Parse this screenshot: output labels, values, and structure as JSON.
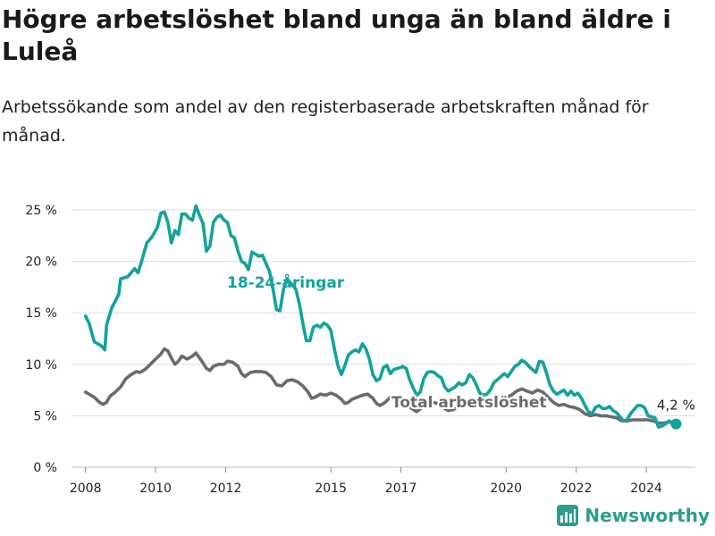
{
  "title": "Högre arbetslöshet bland unga än bland äldre i Luleå",
  "subtitle": "Arbetssökande som andel av den registerbaserade arbetskraften månad för månad.",
  "brand": "Newsworthy",
  "colors": {
    "youth": "#13a39a",
    "total": "#6a6a70",
    "grid": "#dddddd",
    "text": "#222222"
  },
  "chart_data": {
    "type": "line",
    "title": "Högre arbetslöshet bland unga än bland äldre i Luleå",
    "subtitle": "Arbetssökande som andel av den registerbaserade arbetskraften månad för månad.",
    "xlabel": "",
    "ylabel": "",
    "xlim": [
      2007.6,
      2025.4
    ],
    "ylim": [
      0,
      25
    ],
    "yticks": [
      0,
      5,
      10,
      15,
      20,
      25
    ],
    "ytick_labels": [
      "0 %",
      "5 %",
      "10 %",
      "15 %",
      "20 %",
      "25 %"
    ],
    "xticks": [
      2008,
      2010,
      2012,
      2015,
      2017,
      2020,
      2022,
      2024
    ],
    "xtick_labels": [
      "2008",
      "2010",
      "2012",
      "2015",
      "2017",
      "2020",
      "2022",
      "2024"
    ],
    "grid": true,
    "end_label": "4,2 %",
    "series": [
      {
        "name": "18-24-åringar",
        "color": "#13a39a",
        "points": [
          [
            2008.0,
            14.7
          ],
          [
            2008.1,
            14.0
          ],
          [
            2008.25,
            12.2
          ],
          [
            2008.45,
            11.8
          ],
          [
            2008.55,
            11.4
          ],
          [
            2008.6,
            13.8
          ],
          [
            2008.75,
            15.5
          ],
          [
            2008.95,
            16.8
          ],
          [
            2009.0,
            18.3
          ],
          [
            2009.2,
            18.5
          ],
          [
            2009.4,
            19.3
          ],
          [
            2009.5,
            18.9
          ],
          [
            2009.6,
            20.0
          ],
          [
            2009.75,
            21.8
          ],
          [
            2009.9,
            22.4
          ],
          [
            2010.05,
            23.3
          ],
          [
            2010.15,
            24.7
          ],
          [
            2010.25,
            24.8
          ],
          [
            2010.35,
            23.8
          ],
          [
            2010.45,
            21.8
          ],
          [
            2010.55,
            23.0
          ],
          [
            2010.65,
            22.6
          ],
          [
            2010.75,
            24.6
          ],
          [
            2010.85,
            24.6
          ],
          [
            2010.95,
            24.2
          ],
          [
            2011.05,
            24.0
          ],
          [
            2011.15,
            25.4
          ],
          [
            2011.25,
            24.5
          ],
          [
            2011.35,
            23.7
          ],
          [
            2011.45,
            21.0
          ],
          [
            2011.55,
            21.5
          ],
          [
            2011.65,
            23.8
          ],
          [
            2011.75,
            24.3
          ],
          [
            2011.85,
            24.5
          ],
          [
            2011.95,
            24.0
          ],
          [
            2012.05,
            23.8
          ],
          [
            2012.15,
            22.5
          ],
          [
            2012.25,
            22.3
          ],
          [
            2012.35,
            21.0
          ],
          [
            2012.45,
            20.0
          ],
          [
            2012.55,
            19.8
          ],
          [
            2012.65,
            19.2
          ],
          [
            2012.75,
            20.9
          ],
          [
            2012.85,
            20.7
          ],
          [
            2012.95,
            20.5
          ],
          [
            2013.05,
            20.6
          ],
          [
            2013.15,
            19.8
          ],
          [
            2013.25,
            19.0
          ],
          [
            2013.35,
            17.3
          ],
          [
            2013.45,
            15.3
          ],
          [
            2013.55,
            15.2
          ],
          [
            2013.65,
            17.3
          ],
          [
            2013.75,
            18.3
          ],
          [
            2013.85,
            17.9
          ],
          [
            2014.0,
            17.3
          ],
          [
            2014.1,
            15.9
          ],
          [
            2014.2,
            14.0
          ],
          [
            2014.3,
            12.3
          ],
          [
            2014.4,
            12.3
          ],
          [
            2014.5,
            13.6
          ],
          [
            2014.6,
            13.8
          ],
          [
            2014.7,
            13.6
          ],
          [
            2014.8,
            14.0
          ],
          [
            2014.9,
            13.8
          ],
          [
            2015.0,
            13.3
          ],
          [
            2015.1,
            11.5
          ],
          [
            2015.2,
            9.9
          ],
          [
            2015.3,
            9.0
          ],
          [
            2015.4,
            9.9
          ],
          [
            2015.5,
            10.9
          ],
          [
            2015.6,
            11.2
          ],
          [
            2015.7,
            11.4
          ],
          [
            2015.8,
            11.2
          ],
          [
            2015.9,
            12.0
          ],
          [
            2016.0,
            11.5
          ],
          [
            2016.1,
            10.5
          ],
          [
            2016.2,
            9.0
          ],
          [
            2016.3,
            8.4
          ],
          [
            2016.4,
            8.6
          ],
          [
            2016.5,
            9.7
          ],
          [
            2016.6,
            9.9
          ],
          [
            2016.7,
            9.1
          ],
          [
            2016.8,
            9.5
          ],
          [
            2016.9,
            9.6
          ],
          [
            2017.0,
            9.7
          ],
          [
            2017.05,
            9.8
          ],
          [
            2017.15,
            9.6
          ],
          [
            2017.25,
            8.5
          ],
          [
            2017.35,
            7.7
          ],
          [
            2017.45,
            7.0
          ],
          [
            2017.55,
            7.3
          ],
          [
            2017.65,
            8.6
          ],
          [
            2017.75,
            9.2
          ],
          [
            2017.85,
            9.3
          ],
          [
            2017.95,
            9.2
          ],
          [
            2018.05,
            8.9
          ],
          [
            2018.15,
            8.7
          ],
          [
            2018.25,
            7.8
          ],
          [
            2018.35,
            7.4
          ],
          [
            2018.45,
            7.6
          ],
          [
            2018.55,
            7.8
          ],
          [
            2018.65,
            8.2
          ],
          [
            2018.75,
            8.0
          ],
          [
            2018.85,
            8.2
          ],
          [
            2018.95,
            9.0
          ],
          [
            2019.05,
            8.7
          ],
          [
            2019.15,
            8.0
          ],
          [
            2019.25,
            7.2
          ],
          [
            2019.35,
            7.0
          ],
          [
            2019.45,
            7.1
          ],
          [
            2019.55,
            7.5
          ],
          [
            2019.65,
            8.2
          ],
          [
            2019.75,
            8.5
          ],
          [
            2019.85,
            8.8
          ],
          [
            2019.95,
            9.1
          ],
          [
            2020.05,
            8.8
          ],
          [
            2020.15,
            9.3
          ],
          [
            2020.25,
            9.8
          ],
          [
            2020.35,
            10.0
          ],
          [
            2020.45,
            10.4
          ],
          [
            2020.55,
            10.2
          ],
          [
            2020.65,
            9.8
          ],
          [
            2020.75,
            9.5
          ],
          [
            2020.85,
            9.2
          ],
          [
            2020.95,
            10.3
          ],
          [
            2021.05,
            10.2
          ],
          [
            2021.15,
            9.2
          ],
          [
            2021.25,
            8.0
          ],
          [
            2021.35,
            7.4
          ],
          [
            2021.45,
            7.1
          ],
          [
            2021.55,
            7.3
          ],
          [
            2021.65,
            7.5
          ],
          [
            2021.75,
            7.0
          ],
          [
            2021.85,
            7.4
          ],
          [
            2021.95,
            7.0
          ],
          [
            2022.05,
            7.2
          ],
          [
            2022.15,
            6.7
          ],
          [
            2022.25,
            6.0
          ],
          [
            2022.35,
            5.4
          ],
          [
            2022.45,
            5.2
          ],
          [
            2022.55,
            5.8
          ],
          [
            2022.65,
            6.0
          ],
          [
            2022.75,
            5.7
          ],
          [
            2022.85,
            5.7
          ],
          [
            2022.95,
            5.9
          ],
          [
            2023.05,
            5.5
          ],
          [
            2023.15,
            5.3
          ],
          [
            2023.25,
            4.9
          ],
          [
            2023.35,
            4.5
          ],
          [
            2023.45,
            4.6
          ],
          [
            2023.55,
            5.2
          ],
          [
            2023.65,
            5.6
          ],
          [
            2023.75,
            6.0
          ],
          [
            2023.85,
            6.0
          ],
          [
            2023.95,
            5.8
          ],
          [
            2024.05,
            5.0
          ],
          [
            2024.15,
            4.9
          ],
          [
            2024.25,
            4.8
          ],
          [
            2024.35,
            3.9
          ],
          [
            2024.45,
            4.0
          ],
          [
            2024.55,
            4.2
          ],
          [
            2024.65,
            4.5
          ],
          [
            2024.75,
            4.3
          ],
          [
            2024.85,
            4.2
          ]
        ]
      },
      {
        "name": "Total arbetslöshet",
        "color": "#6a6a70",
        "points": [
          [
            2008.0,
            7.3
          ],
          [
            2008.1,
            7.1
          ],
          [
            2008.25,
            6.8
          ],
          [
            2008.4,
            6.3
          ],
          [
            2008.5,
            6.1
          ],
          [
            2008.6,
            6.3
          ],
          [
            2008.7,
            6.9
          ],
          [
            2008.85,
            7.3
          ],
          [
            2009.0,
            7.8
          ],
          [
            2009.15,
            8.6
          ],
          [
            2009.3,
            9.0
          ],
          [
            2009.45,
            9.3
          ],
          [
            2009.55,
            9.2
          ],
          [
            2009.7,
            9.5
          ],
          [
            2009.85,
            10.0
          ],
          [
            2010.0,
            10.5
          ],
          [
            2010.15,
            11.0
          ],
          [
            2010.25,
            11.5
          ],
          [
            2010.35,
            11.3
          ],
          [
            2010.45,
            10.6
          ],
          [
            2010.55,
            10.0
          ],
          [
            2010.65,
            10.3
          ],
          [
            2010.75,
            10.8
          ],
          [
            2010.9,
            10.5
          ],
          [
            2011.05,
            10.8
          ],
          [
            2011.15,
            11.1
          ],
          [
            2011.3,
            10.4
          ],
          [
            2011.45,
            9.6
          ],
          [
            2011.55,
            9.4
          ],
          [
            2011.65,
            9.8
          ],
          [
            2011.8,
            10.0
          ],
          [
            2011.95,
            10.0
          ],
          [
            2012.05,
            10.3
          ],
          [
            2012.2,
            10.2
          ],
          [
            2012.35,
            9.8
          ],
          [
            2012.45,
            9.1
          ],
          [
            2012.55,
            8.8
          ],
          [
            2012.7,
            9.2
          ],
          [
            2012.85,
            9.3
          ],
          [
            2013.0,
            9.3
          ],
          [
            2013.15,
            9.2
          ],
          [
            2013.3,
            8.8
          ],
          [
            2013.45,
            8.0
          ],
          [
            2013.6,
            7.9
          ],
          [
            2013.75,
            8.4
          ],
          [
            2013.9,
            8.5
          ],
          [
            2014.05,
            8.3
          ],
          [
            2014.2,
            7.9
          ],
          [
            2014.35,
            7.3
          ],
          [
            2014.45,
            6.7
          ],
          [
            2014.55,
            6.8
          ],
          [
            2014.7,
            7.1
          ],
          [
            2014.85,
            7.0
          ],
          [
            2015.0,
            7.2
          ],
          [
            2015.15,
            7.0
          ],
          [
            2015.3,
            6.6
          ],
          [
            2015.4,
            6.2
          ],
          [
            2015.5,
            6.3
          ],
          [
            2015.6,
            6.6
          ],
          [
            2015.75,
            6.8
          ],
          [
            2015.9,
            7.0
          ],
          [
            2016.05,
            7.1
          ],
          [
            2016.2,
            6.7
          ],
          [
            2016.3,
            6.2
          ],
          [
            2016.4,
            6.0
          ],
          [
            2016.55,
            6.3
          ],
          [
            2016.7,
            6.8
          ],
          [
            2016.85,
            6.8
          ],
          [
            2017.0,
            6.7
          ],
          [
            2017.15,
            6.3
          ],
          [
            2017.3,
            5.7
          ],
          [
            2017.45,
            5.4
          ],
          [
            2017.6,
            5.8
          ],
          [
            2017.75,
            6.1
          ],
          [
            2017.9,
            6.3
          ],
          [
            2018.05,
            6.2
          ],
          [
            2018.2,
            5.8
          ],
          [
            2018.35,
            5.5
          ],
          [
            2018.5,
            5.6
          ],
          [
            2018.65,
            5.9
          ],
          [
            2018.8,
            6.0
          ],
          [
            2018.95,
            6.3
          ],
          [
            2019.1,
            6.4
          ],
          [
            2019.25,
            6.0
          ],
          [
            2019.4,
            5.8
          ],
          [
            2019.55,
            6.0
          ],
          [
            2019.7,
            6.3
          ],
          [
            2019.85,
            6.5
          ],
          [
            2020.0,
            6.8
          ],
          [
            2020.15,
            7.0
          ],
          [
            2020.3,
            7.4
          ],
          [
            2020.45,
            7.6
          ],
          [
            2020.6,
            7.4
          ],
          [
            2020.75,
            7.2
          ],
          [
            2020.9,
            7.5
          ],
          [
            2021.05,
            7.3
          ],
          [
            2021.2,
            6.8
          ],
          [
            2021.35,
            6.3
          ],
          [
            2021.5,
            6.0
          ],
          [
            2021.65,
            6.1
          ],
          [
            2021.8,
            5.9
          ],
          [
            2021.95,
            5.8
          ],
          [
            2022.1,
            5.6
          ],
          [
            2022.25,
            5.2
          ],
          [
            2022.4,
            5.0
          ],
          [
            2022.55,
            5.1
          ],
          [
            2022.7,
            5.0
          ],
          [
            2022.85,
            5.0
          ],
          [
            2023.0,
            4.9
          ],
          [
            2023.15,
            4.8
          ],
          [
            2023.3,
            4.5
          ],
          [
            2023.45,
            4.5
          ],
          [
            2023.6,
            4.6
          ],
          [
            2023.75,
            4.6
          ],
          [
            2023.9,
            4.6
          ],
          [
            2024.05,
            4.6
          ],
          [
            2024.2,
            4.5
          ],
          [
            2024.35,
            4.3
          ],
          [
            2024.5,
            4.3
          ],
          [
            2024.65,
            4.4
          ],
          [
            2024.75,
            4.3
          ],
          [
            2024.85,
            4.2
          ]
        ]
      }
    ]
  }
}
